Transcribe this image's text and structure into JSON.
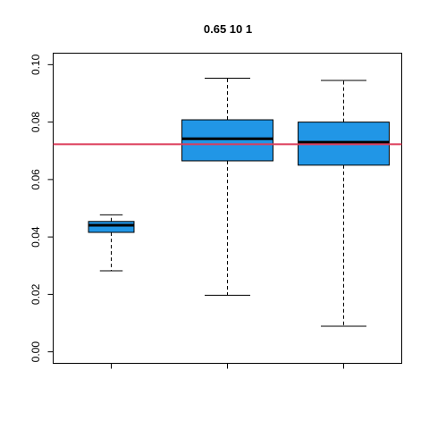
{
  "chart_data": {
    "type": "box",
    "title": "0.65 10 1",
    "xlabel": "",
    "ylabel": "",
    "ylim": [
      -0.004,
      0.104
    ],
    "y_ticks": [
      0.0,
      0.02,
      0.04,
      0.06,
      0.08,
      0.1
    ],
    "y_tick_labels": [
      "0.00",
      "0.02",
      "0.04",
      "0.06",
      "0.08",
      "0.10"
    ],
    "x_tick_labels": [
      "",
      "",
      ""
    ],
    "reference_line": {
      "y": 0.0723,
      "color": "#dc3c5a"
    },
    "box_fill": "#2196e6",
    "boxes": [
      {
        "whisker_low": 0.0282,
        "q1": 0.0416,
        "median": 0.0441,
        "q3": 0.0454,
        "whisker_high": 0.0477,
        "relative_width": 0.4
      },
      {
        "whisker_low": 0.0197,
        "q1": 0.0665,
        "median": 0.0742,
        "q3": 0.0808,
        "whisker_high": 0.0953,
        "relative_width": 0.8
      },
      {
        "whisker_low": 0.0089,
        "q1": 0.065,
        "median": 0.073,
        "q3": 0.08,
        "whisker_high": 0.0945,
        "relative_width": 0.8
      }
    ],
    "grid": false,
    "legend": "none"
  }
}
